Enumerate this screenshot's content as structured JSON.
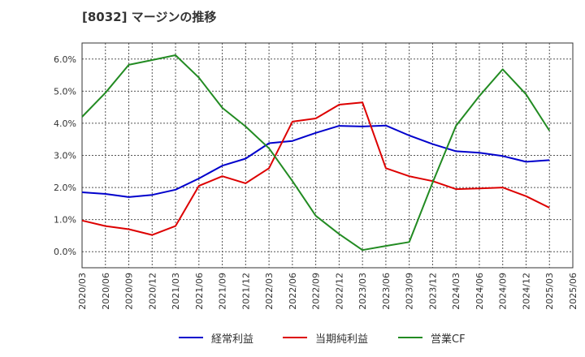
{
  "title": "[8032]  マージンの推移",
  "chart_data": {
    "type": "line",
    "title": "[8032]  マージンの推移",
    "x": [
      "2020/03",
      "2020/06",
      "2020/09",
      "2020/12",
      "2021/03",
      "2021/06",
      "2021/09",
      "2021/12",
      "2022/03",
      "2022/06",
      "2022/09",
      "2022/12",
      "2023/03",
      "2023/06",
      "2023/09",
      "2023/12",
      "2024/03",
      "2024/06",
      "2024/09",
      "2024/12",
      "2025/03",
      "2025/06"
    ],
    "yticks": [
      "0.0%",
      "1.0%",
      "2.0%",
      "3.0%",
      "4.0%",
      "5.0%",
      "6.0%"
    ],
    "ylim": [
      -0.5,
      6.5
    ],
    "grid": true,
    "legend_position": "bottom",
    "series": [
      {
        "name": "経常利益",
        "color": "#0000cc",
        "values": [
          1.85,
          1.8,
          1.7,
          1.77,
          1.93,
          2.28,
          2.68,
          2.9,
          3.38,
          3.45,
          3.7,
          3.92,
          3.9,
          3.93,
          3.62,
          3.35,
          3.13,
          3.08,
          2.98,
          2.8,
          2.85,
          null
        ]
      },
      {
        "name": "当期純利益",
        "color": "#dd0000",
        "values": [
          0.97,
          0.8,
          0.7,
          0.52,
          0.8,
          2.05,
          2.35,
          2.13,
          2.6,
          4.05,
          4.15,
          4.58,
          4.65,
          2.6,
          2.35,
          2.2,
          1.95,
          1.97,
          2.0,
          1.73,
          1.37,
          null
        ]
      },
      {
        "name": "営業CF",
        "color": "#228b22",
        "values": [
          4.2,
          4.95,
          5.82,
          5.97,
          6.12,
          5.42,
          4.48,
          3.9,
          3.22,
          2.2,
          1.12,
          0.55,
          0.05,
          0.18,
          0.3,
          2.15,
          3.92,
          4.85,
          5.68,
          4.9,
          3.77,
          null
        ]
      }
    ]
  }
}
